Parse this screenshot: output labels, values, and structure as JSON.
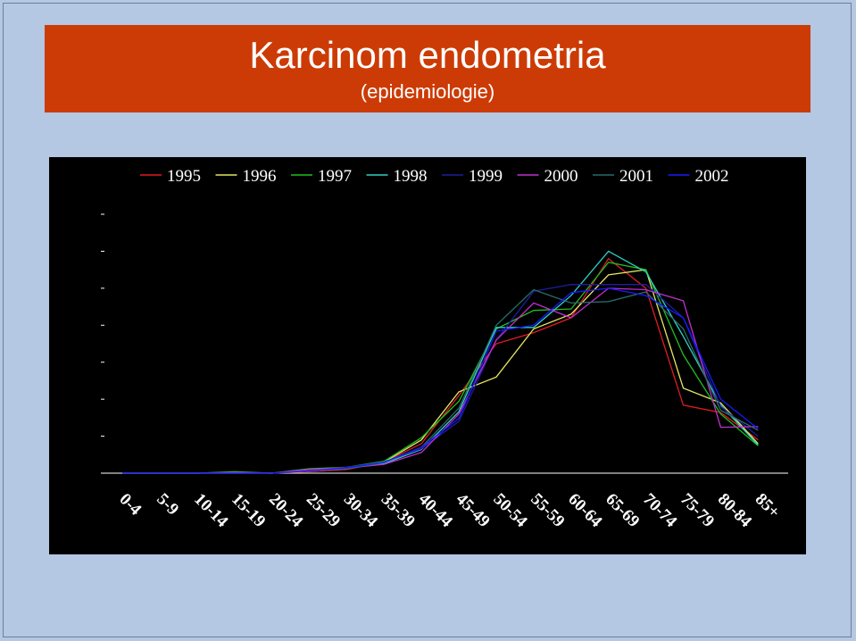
{
  "slide": {
    "title": "Karcinom endometria",
    "subtitle": "(epidemiologie)"
  },
  "colors": {
    "background": "#b4c7e3",
    "title_bar": "#cc3b06",
    "chart_background": "#000000",
    "text": "#ffffff"
  },
  "chart_data": {
    "type": "line",
    "categories": [
      "0-4",
      "5-9",
      "10-14",
      "15-19",
      "20-24",
      "25-29",
      "30-34",
      "35-39",
      "40-44",
      "45-49",
      "50-54",
      "55-59",
      "60-64",
      "65-69",
      "70-74",
      "75-79",
      "80-84",
      "85+"
    ],
    "ylim": [
      0,
      350
    ],
    "yticks": [
      0,
      50,
      100,
      150,
      200,
      250,
      300,
      350
    ],
    "grid": false,
    "legend_position": "top",
    "series": [
      {
        "name": "1995",
        "color": "#e11b22",
        "values": [
          0,
          0,
          0,
          1,
          0,
          2,
          5,
          15,
          40,
          105,
          175,
          190,
          210,
          290,
          250,
          92,
          82,
          45
        ]
      },
      {
        "name": "1996",
        "color": "#e6e663",
        "values": [
          0,
          0,
          0,
          1,
          0,
          3,
          6,
          15,
          45,
          110,
          130,
          195,
          215,
          268,
          275,
          115,
          95,
          40
        ]
      },
      {
        "name": "1997",
        "color": "#1fbf1f",
        "values": [
          0,
          0,
          0,
          2,
          0,
          6,
          8,
          16,
          48,
          97,
          195,
          220,
          222,
          285,
          275,
          160,
          80,
          37
        ]
      },
      {
        "name": "1998",
        "color": "#2fd0c4",
        "values": [
          0,
          0,
          0,
          0,
          0,
          4,
          7,
          13,
          32,
          83,
          197,
          197,
          240,
          300,
          272,
          185,
          92,
          38
        ]
      },
      {
        "name": "1999",
        "color": "#1e1ea0",
        "values": [
          0,
          0,
          0,
          0,
          0,
          4,
          8,
          15,
          33,
          70,
          180,
          246,
          255,
          255,
          255,
          210,
          90,
          50
        ]
      },
      {
        "name": "2000",
        "color": "#c02fd0",
        "values": [
          0,
          0,
          0,
          1,
          0,
          5,
          7,
          12,
          28,
          80,
          180,
          230,
          210,
          250,
          248,
          233,
          62,
          63
        ]
      },
      {
        "name": "2001",
        "color": "#2a6a6a",
        "values": [
          0,
          0,
          0,
          0,
          0,
          3,
          6,
          14,
          35,
          88,
          200,
          248,
          230,
          232,
          245,
          195,
          85,
          58
        ]
      },
      {
        "name": "2002",
        "color": "#1a1aff",
        "values": [
          0,
          0,
          0,
          0,
          0,
          3,
          7,
          15,
          35,
          74,
          192,
          200,
          244,
          250,
          240,
          210,
          100,
          60
        ]
      }
    ]
  }
}
